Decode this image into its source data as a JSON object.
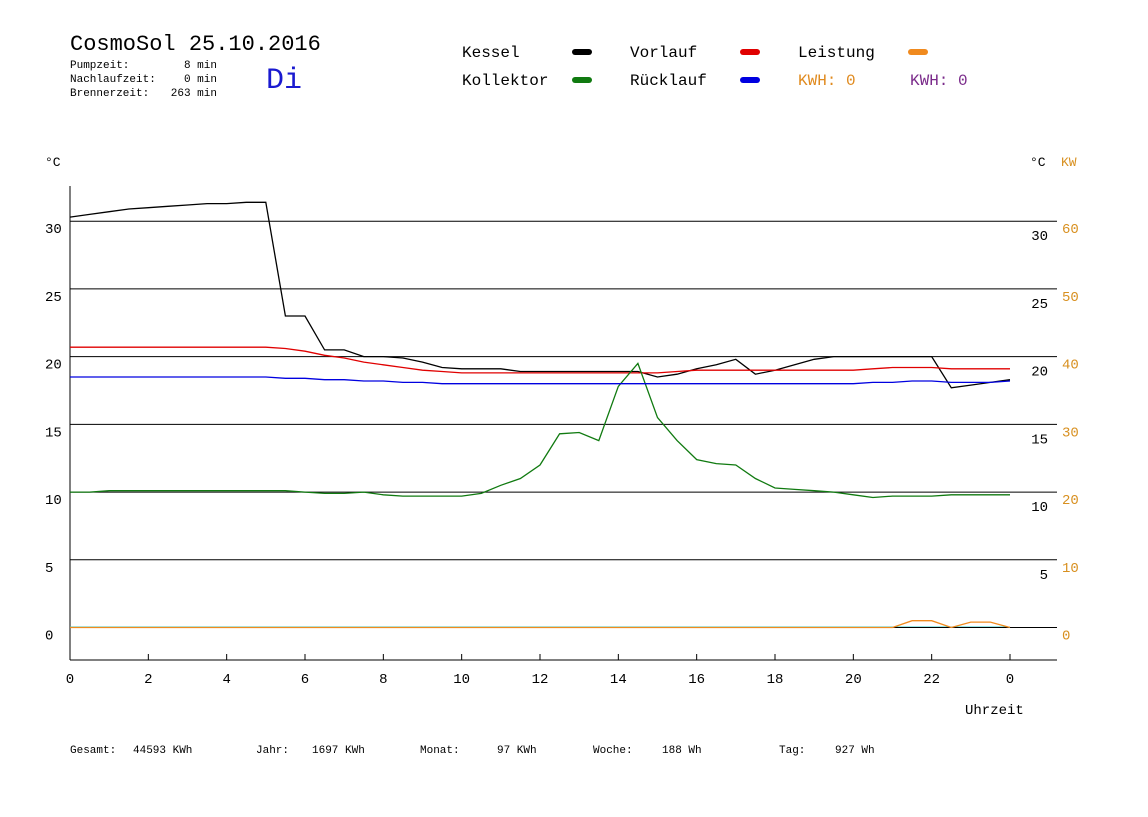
{
  "header": {
    "title": "CosmoSol 25.10.2016",
    "day": "Di",
    "info": [
      {
        "label": "Pumpzeit:",
        "value": "8 min"
      },
      {
        "label": "Nachlaufzeit:",
        "value": "0 min"
      },
      {
        "label": "Brennerzeit:",
        "value": "263 min"
      }
    ]
  },
  "chart_data": {
    "type": "line",
    "y_label": "°C",
    "y2_label_c": "°C",
    "y2_label": "KW",
    "x_label": "Uhrzeit",
    "xlim": [
      0,
      25.2
    ],
    "xticks": [
      0,
      2,
      4,
      6,
      8,
      10,
      12,
      14,
      16,
      18,
      20,
      22,
      {
        "value": 24,
        "label": "0"
      }
    ],
    "ylim": [
      -2.4,
      32.6
    ],
    "yticks": [
      0,
      5,
      10,
      15,
      20,
      25,
      30
    ],
    "y_right_ticks": [
      5,
      10,
      15,
      20,
      25,
      30
    ],
    "y2lim": [
      -4.8,
      65.2
    ],
    "y2ticks": [
      0,
      10,
      20,
      30,
      40,
      50,
      60
    ],
    "grid": true,
    "x": [
      0,
      0.5,
      1,
      1.5,
      2,
      2.5,
      3,
      3.5,
      4,
      4.5,
      5,
      5.5,
      6,
      6.5,
      7,
      7.5,
      8,
      8.5,
      9,
      9.5,
      10,
      10.5,
      11,
      11.5,
      12,
      12.5,
      13,
      13.5,
      14,
      14.5,
      15,
      15.5,
      16,
      16.5,
      17,
      17.5,
      18,
      18.5,
      19,
      19.5,
      20,
      20.5,
      21,
      21.5,
      22,
      22.5,
      23,
      23.5,
      24
    ],
    "series": [
      {
        "name": "Kessel",
        "color": "#000000",
        "values": [
          30.3,
          30.5,
          30.7,
          30.9,
          31.0,
          31.1,
          31.2,
          31.3,
          31.3,
          31.4,
          31.4,
          23.0,
          23.0,
          20.5,
          20.5,
          20.0,
          20.0,
          19.9,
          19.6,
          19.2,
          19.1,
          19.1,
          19.1,
          18.9,
          18.9,
          18.9,
          18.9,
          18.9,
          18.9,
          18.9,
          18.5,
          18.7,
          19.1,
          19.4,
          19.8,
          18.7,
          19.0,
          19.4,
          19.8,
          20.0,
          20.0,
          20.0,
          20.0,
          20.0,
          20.0,
          17.7,
          17.9,
          18.1,
          18.3
        ]
      },
      {
        "name": "Vorlauf",
        "color": "#e00000",
        "values": [
          20.7,
          20.7,
          20.7,
          20.7,
          20.7,
          20.7,
          20.7,
          20.7,
          20.7,
          20.7,
          20.7,
          20.6,
          20.4,
          20.1,
          19.9,
          19.6,
          19.4,
          19.2,
          19.0,
          18.9,
          18.8,
          18.8,
          18.8,
          18.8,
          18.8,
          18.8,
          18.8,
          18.8,
          18.8,
          18.8,
          18.8,
          18.9,
          19.0,
          19.0,
          19.0,
          19.0,
          19.0,
          19.0,
          19.0,
          19.0,
          19.0,
          19.1,
          19.2,
          19.2,
          19.2,
          19.1,
          19.1,
          19.1,
          19.1
        ]
      },
      {
        "name": "Leistung",
        "color": "#f08a1e",
        "axis": "y2",
        "values": [
          0,
          0,
          0,
          0,
          0,
          0,
          0,
          0,
          0,
          0,
          0,
          0,
          0,
          0,
          0,
          0,
          0,
          0,
          0,
          0,
          0,
          0,
          0,
          0,
          0,
          0,
          0,
          0,
          0,
          0,
          0,
          0,
          0,
          0,
          0,
          0,
          0,
          0,
          0,
          0,
          0,
          0,
          0,
          1,
          1,
          0,
          0.8,
          0.8,
          0
        ]
      },
      {
        "name": "Kollektor",
        "color": "#107a10",
        "values": [
          10.0,
          10.0,
          10.1,
          10.1,
          10.1,
          10.1,
          10.1,
          10.1,
          10.1,
          10.1,
          10.1,
          10.1,
          10.0,
          9.9,
          9.9,
          10.0,
          9.8,
          9.7,
          9.7,
          9.7,
          9.7,
          9.9,
          10.5,
          11.0,
          12.0,
          14.3,
          14.4,
          13.8,
          17.8,
          19.5,
          15.5,
          13.8,
          12.4,
          12.1,
          12.0,
          11.0,
          10.3,
          10.2,
          10.1,
          10.0,
          9.8,
          9.6,
          9.7,
          9.7,
          9.7,
          9.8,
          9.8,
          9.8,
          9.8
        ]
      },
      {
        "name": "Rücklauf",
        "color": "#0000e0",
        "values": [
          18.5,
          18.5,
          18.5,
          18.5,
          18.5,
          18.5,
          18.5,
          18.5,
          18.5,
          18.5,
          18.5,
          18.4,
          18.4,
          18.3,
          18.3,
          18.2,
          18.2,
          18.1,
          18.1,
          18.0,
          18.0,
          18.0,
          18.0,
          18.0,
          18.0,
          18.0,
          18.0,
          18.0,
          18.0,
          18.0,
          18.0,
          18.0,
          18.0,
          18.0,
          18.0,
          18.0,
          18.0,
          18.0,
          18.0,
          18.0,
          18.0,
          18.1,
          18.1,
          18.2,
          18.2,
          18.1,
          18.1,
          18.1,
          18.2
        ]
      }
    ],
    "kwh": [
      {
        "text": "KWH: 0",
        "color": "#e08a1e"
      },
      {
        "text": "KWH: 0",
        "color": "#7a2a8a"
      }
    ]
  },
  "footer": [
    {
      "label": "Gesamt:",
      "value": "44593 KWh"
    },
    {
      "label": "Jahr:",
      "value": "1697 KWh"
    },
    {
      "label": "Monat:",
      "value": "97 KWh"
    },
    {
      "label": "Woche:",
      "value": "188 Wh"
    },
    {
      "label": "Tag:",
      "value": "927 Wh"
    }
  ]
}
